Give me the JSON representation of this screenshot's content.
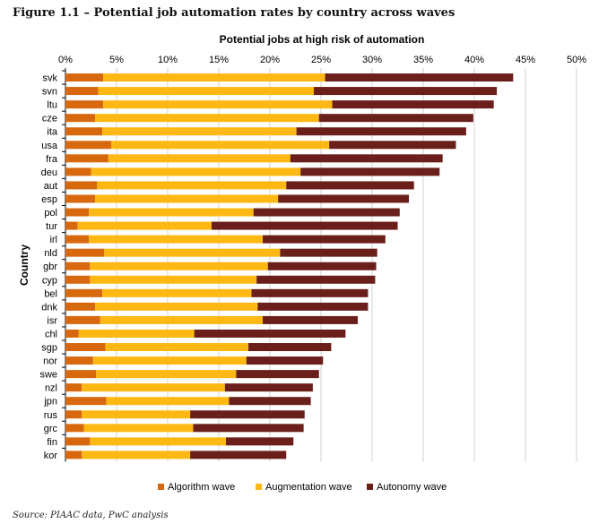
{
  "figure_title": "Figure 1.1 – Potential job automation rates by country across waves",
  "source_note": "Source: PIAAC data, PwC analysis",
  "colors": {
    "algorithm": "#D7680E",
    "augmentation": "#FDB813",
    "autonomy": "#6B1F1A",
    "gridline": "#D0D0D0",
    "axis": "#000000"
  },
  "chart_data": {
    "type": "bar",
    "orientation": "horizontal",
    "stacked": true,
    "title": "Potential jobs at high risk of automation",
    "xlabel": "",
    "ylabel": "Country",
    "xlim": [
      0,
      50
    ],
    "x_ticks": [
      0,
      5,
      10,
      15,
      20,
      25,
      30,
      35,
      40,
      45,
      50
    ],
    "x_tick_labels": [
      "0%",
      "5%",
      "10%",
      "15%",
      "20%",
      "25%",
      "30%",
      "35%",
      "40%",
      "45%",
      "50%"
    ],
    "grid": "vertical",
    "legend_position": "bottom",
    "categories": [
      "svk",
      "svn",
      "ltu",
      "cze",
      "ita",
      "usa",
      "fra",
      "deu",
      "aut",
      "esp",
      "pol",
      "tur",
      "irl",
      "nld",
      "gbr",
      "cyp",
      "bel",
      "dnk",
      "isr",
      "chl",
      "sgp",
      "nor",
      "swe",
      "nzl",
      "jpn",
      "rus",
      "grc",
      "fin",
      "kor"
    ],
    "series": [
      {
        "name": "Algorithm wave",
        "values": [
          3.7,
          3.2,
          3.7,
          2.9,
          3.6,
          4.5,
          4.2,
          2.5,
          3.1,
          2.9,
          2.3,
          1.2,
          2.3,
          3.8,
          2.4,
          2.4,
          3.6,
          2.9,
          3.4,
          1.3,
          3.9,
          2.7,
          3.0,
          1.6,
          4.0,
          1.6,
          1.8,
          2.4,
          1.6
        ]
      },
      {
        "name": "Augmentation wave",
        "values": [
          21.7,
          21.1,
          22.4,
          21.9,
          19.0,
          21.3,
          17.8,
          20.5,
          18.5,
          17.9,
          16.1,
          13.1,
          17.0,
          17.2,
          17.4,
          16.3,
          14.6,
          15.9,
          15.9,
          11.3,
          14.0,
          15.0,
          13.7,
          14.0,
          12.0,
          10.6,
          10.7,
          13.3,
          10.6
        ]
      },
      {
        "name": "Autonomy wave",
        "values": [
          18.4,
          17.9,
          15.8,
          15.1,
          16.6,
          12.4,
          14.9,
          13.6,
          12.5,
          12.8,
          14.3,
          18.2,
          12.0,
          9.5,
          10.6,
          11.6,
          11.4,
          10.8,
          9.3,
          14.8,
          8.1,
          7.5,
          8.1,
          8.6,
          8.0,
          11.2,
          10.8,
          6.6,
          9.4
        ]
      }
    ]
  }
}
